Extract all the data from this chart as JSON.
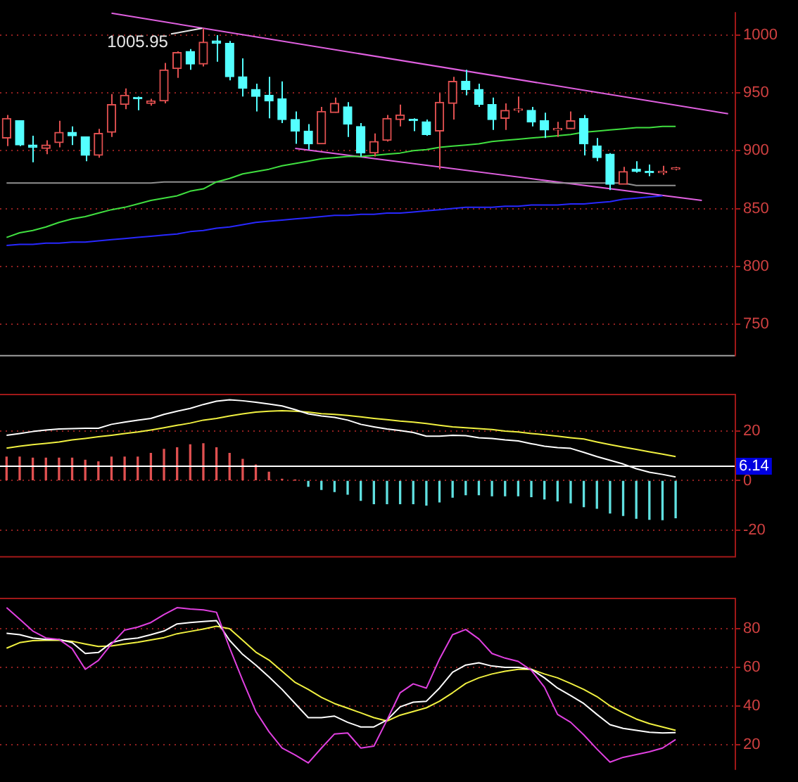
{
  "chart_data": [
    {
      "type": "candlestick",
      "categories": [
        null,
        null,
        null,
        null,
        null,
        null,
        null,
        null,
        null,
        null,
        null,
        null,
        null,
        null,
        null,
        null,
        null,
        null,
        null,
        null,
        null,
        null,
        null,
        null,
        null,
        null,
        null,
        null,
        null,
        null,
        null,
        null,
        null,
        null,
        null,
        null,
        null,
        null,
        null,
        null,
        null,
        null,
        null,
        null,
        null,
        null,
        null,
        null,
        null,
        null,
        null,
        null,
        null,
        null,
        null,
        null
      ],
      "ohlc": [
        [
          911,
          931,
          904,
          928
        ],
        [
          926,
          926,
          904,
          905
        ],
        [
          905,
          913,
          890,
          903
        ],
        [
          902,
          909,
          897,
          905
        ],
        [
          907,
          926,
          903,
          916
        ],
        [
          916,
          921,
          905,
          913
        ],
        [
          912,
          912,
          891,
          896
        ],
        [
          896,
          919,
          894,
          915
        ],
        [
          916,
          949,
          912,
          940
        ],
        [
          940,
          954,
          936,
          948
        ],
        [
          946,
          947,
          935,
          945
        ],
        [
          941,
          945,
          939,
          943
        ],
        [
          943,
          976,
          941,
          970
        ],
        [
          971,
          986,
          963,
          985
        ],
        [
          986,
          988,
          970,
          975
        ],
        [
          975,
          1005.95,
          973,
          994
        ],
        [
          995,
          1000,
          977,
          993
        ],
        [
          993,
          995,
          961,
          964
        ],
        [
          964,
          980,
          947,
          954
        ],
        [
          953,
          958,
          934,
          947
        ],
        [
          948,
          964,
          928,
          943
        ],
        [
          945,
          960,
          924,
          927
        ],
        [
          927,
          934,
          906,
          917
        ],
        [
          917,
          923,
          901,
          906
        ],
        [
          906,
          938,
          906,
          934
        ],
        [
          933,
          946,
          933,
          941
        ],
        [
          938,
          942,
          912,
          923
        ],
        [
          921,
          924,
          895,
          898
        ],
        [
          898,
          915,
          895,
          908
        ],
        [
          909,
          931,
          908,
          928
        ],
        [
          927,
          940,
          921,
          931
        ],
        [
          927,
          928,
          917,
          926
        ],
        [
          925,
          927,
          913,
          914
        ],
        [
          917,
          950,
          884,
          942
        ],
        [
          941,
          964,
          927,
          960
        ],
        [
          960,
          970,
          948,
          953
        ],
        [
          953,
          958,
          938,
          940
        ],
        [
          940,
          946,
          918,
          927
        ],
        [
          928,
          941,
          918,
          935
        ],
        [
          935,
          947,
          933,
          936
        ],
        [
          935,
          938,
          921,
          925
        ],
        [
          926,
          933,
          911,
          918
        ],
        [
          918,
          925,
          912,
          919
        ],
        [
          919,
          934,
          919,
          926
        ],
        [
          928,
          931,
          896,
          906
        ],
        [
          904,
          911,
          891,
          894
        ],
        [
          897,
          898,
          866,
          871
        ],
        [
          871,
          886,
          871,
          882
        ],
        [
          884,
          891,
          881,
          882
        ],
        [
          882,
          888,
          878,
          881
        ],
        [
          881,
          887,
          879,
          882
        ],
        [
          884,
          886,
          883,
          885
        ],
        null,
        null,
        null,
        null
      ],
      "colors": [
        "#e05050",
        "#54ffff",
        "#54ffff",
        "#e05050",
        "#e05050",
        "#54ffff",
        "#54ffff",
        "#e05050",
        "#e05050",
        "#e05050",
        "#54ffff",
        "#e05050",
        "#e05050",
        "#e05050",
        "#54ffff",
        "#e05050",
        "#54ffff",
        "#54ffff",
        "#54ffff",
        "#54ffff",
        "#54ffff",
        "#54ffff",
        "#54ffff",
        "#54ffff",
        "#e05050",
        "#e05050",
        "#54ffff",
        "#54ffff",
        "#e05050",
        "#e05050",
        "#e05050",
        "#54ffff",
        "#54ffff",
        "#e05050",
        "#e05050",
        "#54ffff",
        "#54ffff",
        "#54ffff",
        "#e05050",
        "#e05050",
        "#54ffff",
        "#54ffff",
        "#e05050",
        "#e05050",
        "#54ffff",
        "#54ffff",
        "#54ffff",
        "#e05050",
        "#54ffff",
        "#54ffff",
        "#e05050",
        "#e05050",
        null,
        null,
        null,
        null
      ],
      "series": [
        {
          "type": "line",
          "color": "#40e040",
          "values": [
            825,
            829,
            831,
            834,
            838,
            841,
            843,
            846,
            849,
            851,
            854,
            857,
            859,
            861,
            865,
            867,
            873,
            876,
            880,
            882,
            884,
            887,
            889,
            891,
            893,
            894,
            895,
            895,
            896,
            897,
            898,
            900,
            901,
            903,
            904,
            905,
            906,
            908,
            909,
            910,
            911,
            912,
            913,
            914,
            916,
            917,
            918,
            919,
            920,
            920,
            921,
            921,
            null,
            null,
            null,
            null
          ]
        },
        {
          "type": "line",
          "color": "#2828ff",
          "values": [
            818,
            819,
            819,
            820,
            820,
            821,
            821,
            822,
            823,
            824,
            825,
            826,
            827,
            828,
            830,
            831,
            833,
            834,
            836,
            838,
            839,
            840,
            841,
            842,
            843,
            844,
            844,
            845,
            845,
            846,
            846,
            847,
            848,
            849,
            850,
            851,
            851,
            851,
            852,
            852,
            853,
            853,
            853,
            854,
            854,
            855,
            856,
            858,
            859,
            860,
            861,
            null,
            null,
            null,
            null,
            null
          ]
        },
        {
          "type": "line",
          "color": "#909090",
          "values": [
            872,
            872,
            872,
            872,
            872,
            872,
            872,
            872,
            872,
            872,
            872,
            872,
            873,
            873,
            873,
            873,
            873,
            873,
            873,
            873,
            873,
            873,
            873,
            873,
            873,
            873,
            873,
            873,
            873,
            873,
            873,
            873,
            873,
            873,
            873,
            873,
            873,
            873,
            873,
            873,
            873,
            873,
            872,
            872,
            872,
            872,
            872,
            872,
            870,
            870,
            870,
            870,
            null,
            null,
            null,
            null
          ]
        },
        {
          "type": "line",
          "color": "#e060e0",
          "values": [
            null,
            null,
            null,
            null,
            null,
            null,
            null,
            null,
            1019,
            null,
            null,
            null,
            null,
            null,
            null,
            null,
            null,
            null,
            null,
            null,
            null,
            null,
            null,
            null,
            null,
            null,
            null,
            null,
            null,
            null,
            null,
            null,
            null,
            null,
            null,
            null,
            null,
            null,
            null,
            null,
            null,
            null,
            null,
            null,
            null,
            null,
            null,
            null,
            null,
            null,
            null,
            null,
            null,
            null,
            null,
            932
          ]
        },
        {
          "type": "line",
          "color": "#e060e0",
          "values": [
            null,
            null,
            null,
            null,
            null,
            null,
            null,
            null,
            null,
            null,
            null,
            null,
            null,
            null,
            null,
            null,
            null,
            null,
            null,
            null,
            null,
            null,
            902,
            null,
            null,
            null,
            null,
            null,
            null,
            null,
            null,
            null,
            null,
            null,
            null,
            null,
            null,
            null,
            null,
            null,
            null,
            null,
            null,
            null,
            null,
            null,
            null,
            null,
            null,
            null,
            null,
            null,
            null,
            857,
            null,
            null
          ]
        }
      ],
      "ylim": [
        722,
        1020
      ],
      "yticks": [
        750,
        800,
        850,
        900,
        950,
        1000
      ],
      "grid": "y",
      "tick_labels": "y",
      "annotations": [
        "1005.95"
      ]
    },
    {
      "type": "bar",
      "categories": [
        null,
        null,
        null,
        null,
        null,
        null,
        null,
        null,
        null,
        null,
        null,
        null,
        null,
        null,
        null,
        null,
        null,
        null,
        null,
        null,
        null,
        null,
        null,
        null,
        null,
        null,
        null,
        null,
        null,
        null,
        null,
        null,
        null,
        null,
        null,
        null,
        null,
        null,
        null,
        null,
        null,
        null,
        null,
        null,
        null,
        null,
        null,
        null,
        null,
        null,
        null,
        null,
        null,
        null,
        null,
        null
      ],
      "series": [
        {
          "values": [
            9.5,
            9.5,
            9.1,
            9.1,
            9.1,
            9.1,
            8.2,
            7.6,
            9.5,
            9.5,
            9.5,
            11.0,
            12.6,
            13.3,
            14.5,
            14.9,
            13.3,
            11.0,
            8.6,
            6.3,
            3.4,
            0.6,
            0.2,
            -2.3,
            -3.6,
            -4.4,
            -5.5,
            -8.0,
            -9.3,
            -9.3,
            -9.3,
            -9.3,
            -9.9,
            -8.6,
            -6.7,
            -5.7,
            -5.7,
            -6.1,
            -6.1,
            -6.1,
            -6.5,
            -7.4,
            -8.2,
            -9.0,
            -10.5,
            -11.2,
            -13.1,
            -14.1,
            -15.2,
            -15.6,
            -15.8,
            -15.0,
            null,
            null,
            null,
            null
          ],
          "colors": [
            "#e05050",
            "#e05050",
            "#e05050",
            "#e05050",
            "#e05050",
            "#e05050",
            "#e05050",
            "#e05050",
            "#e05050",
            "#e05050",
            "#e05050",
            "#e05050",
            "#e05050",
            "#e05050",
            "#e05050",
            "#e05050",
            "#e05050",
            "#e05050",
            "#e05050",
            "#e05050",
            "#e05050",
            "#e05050",
            "#e05050",
            "#60e0e0",
            "#60e0e0",
            "#60e0e0",
            "#60e0e0",
            "#60e0e0",
            "#60e0e0",
            "#60e0e0",
            "#60e0e0",
            "#60e0e0",
            "#60e0e0",
            "#60e0e0",
            "#60e0e0",
            "#60e0e0",
            "#60e0e0",
            "#60e0e0",
            "#60e0e0",
            "#60e0e0",
            "#60e0e0",
            "#60e0e0",
            "#60e0e0",
            "#60e0e0",
            "#60e0e0",
            "#60e0e0",
            "#60e0e0",
            "#60e0e0",
            "#60e0e0",
            "#60e0e0",
            "#60e0e0",
            "#60e0e0",
            null,
            null,
            null,
            null
          ]
        },
        {
          "type": "line",
          "color": "#ffffff",
          "values": [
            18.3,
            19.0,
            19.8,
            20.4,
            20.8,
            21.0,
            21.1,
            21.1,
            22.7,
            23.6,
            24.4,
            25.1,
            26.7,
            28.0,
            29.1,
            30.7,
            32.0,
            32.6,
            32.2,
            31.6,
            30.9,
            30.1,
            28.6,
            26.9,
            26.1,
            25.5,
            24.4,
            22.7,
            21.7,
            20.8,
            20.2,
            19.4,
            17.9,
            17.9,
            18.3,
            18.1,
            17.3,
            17.0,
            16.4,
            16.0,
            14.9,
            13.9,
            13.3,
            13.0,
            11.4,
            9.7,
            8.2,
            6.7,
            4.8,
            3.4,
            2.5,
            1.5,
            null,
            null,
            null,
            null
          ]
        },
        {
          "type": "line",
          "color": "#f0f040",
          "values": [
            13.1,
            13.9,
            14.5,
            15.0,
            15.6,
            16.4,
            17.0,
            17.7,
            18.3,
            19.0,
            19.6,
            20.4,
            21.3,
            22.3,
            23.2,
            24.4,
            25.1,
            26.1,
            26.9,
            27.6,
            28.0,
            28.2,
            28.0,
            27.6,
            27.0,
            26.7,
            26.3,
            25.7,
            25.1,
            24.6,
            24.0,
            23.6,
            23.0,
            22.3,
            21.7,
            21.3,
            21.0,
            20.6,
            20.0,
            19.6,
            19.0,
            18.5,
            17.9,
            17.3,
            16.8,
            15.6,
            14.5,
            13.5,
            12.6,
            11.6,
            10.7,
            9.7,
            null,
            null,
            null,
            null
          ]
        }
      ],
      "ylim": [
        -31,
        35
      ],
      "yticks": [
        -20,
        0,
        20
      ],
      "grid": "y",
      "tick_labels": "y",
      "ref_lines": [
        {
          "axis": "y",
          "value": 6.14,
          "label": "6.14",
          "color": "#ffffff"
        }
      ]
    },
    {
      "type": "line",
      "categories": [
        null,
        null,
        null,
        null,
        null,
        null,
        null,
        null,
        null,
        null,
        null,
        null,
        null,
        null,
        null,
        null,
        null,
        null,
        null,
        null,
        null,
        null,
        null,
        null,
        null,
        null,
        null,
        null,
        null,
        null,
        null,
        null,
        null,
        null,
        null,
        null,
        null,
        null,
        null,
        null,
        null,
        null,
        null,
        null,
        null,
        null,
        null,
        null,
        null,
        null,
        null,
        null,
        null,
        null,
        null,
        null
      ],
      "series": [
        {
          "color": "#e040e0",
          "values": [
            90.9,
            84.9,
            78.8,
            75.2,
            74.5,
            69.7,
            59.0,
            63.6,
            72.1,
            79.3,
            80.8,
            83.2,
            87.3,
            90.9,
            90.2,
            89.7,
            88.5,
            70.1,
            53.2,
            37.2,
            26.8,
            18.3,
            14.7,
            10.6,
            18.3,
            25.6,
            26.1,
            18.3,
            19.3,
            32.8,
            46.9,
            51.5,
            49.3,
            64.3,
            76.9,
            79.6,
            74.7,
            67.2,
            64.8,
            63.1,
            58.5,
            49.8,
            35.7,
            31.6,
            25.1,
            17.8,
            11.0,
            13.5,
            14.9,
            16.4,
            18.3,
            22.7,
            null,
            null,
            null,
            null
          ]
        },
        {
          "color": "#ffffff",
          "values": [
            77.6,
            76.9,
            75.2,
            74.5,
            74.5,
            72.8,
            67.2,
            67.7,
            72.8,
            74.5,
            75.2,
            76.9,
            78.8,
            82.5,
            83.2,
            83.7,
            84.2,
            74.0,
            66.7,
            61.2,
            55.1,
            48.6,
            41.3,
            34.0,
            34.0,
            34.8,
            31.6,
            29.2,
            29.2,
            32.8,
            39.6,
            42.0,
            42.5,
            49.3,
            57.5,
            61.2,
            62.4,
            60.7,
            60.0,
            60.0,
            59.0,
            54.6,
            49.3,
            45.4,
            41.3,
            35.7,
            30.4,
            28.5,
            27.5,
            26.5,
            26.1,
            26.3,
            null,
            null,
            null,
            null
          ]
        },
        {
          "color": "#f0f040",
          "values": [
            69.9,
            72.8,
            73.8,
            74.0,
            74.0,
            73.5,
            72.1,
            70.8,
            71.1,
            72.1,
            73.0,
            74.2,
            75.4,
            77.4,
            78.6,
            79.8,
            81.3,
            80.0,
            74.0,
            67.9,
            63.8,
            58.0,
            52.2,
            48.6,
            44.5,
            41.3,
            38.9,
            36.5,
            34.0,
            32.3,
            35.3,
            37.2,
            39.1,
            42.5,
            46.9,
            51.7,
            54.6,
            56.6,
            58.0,
            59.0,
            59.0,
            56.6,
            54.6,
            51.7,
            48.6,
            44.9,
            40.1,
            36.5,
            33.3,
            30.9,
            29.2,
            27.5,
            null,
            null,
            null,
            null
          ]
        }
      ],
      "ylim": [
        7,
        96
      ],
      "yticks": [
        20,
        40,
        60,
        80
      ],
      "grid": "y",
      "tick_labels": "y"
    }
  ]
}
